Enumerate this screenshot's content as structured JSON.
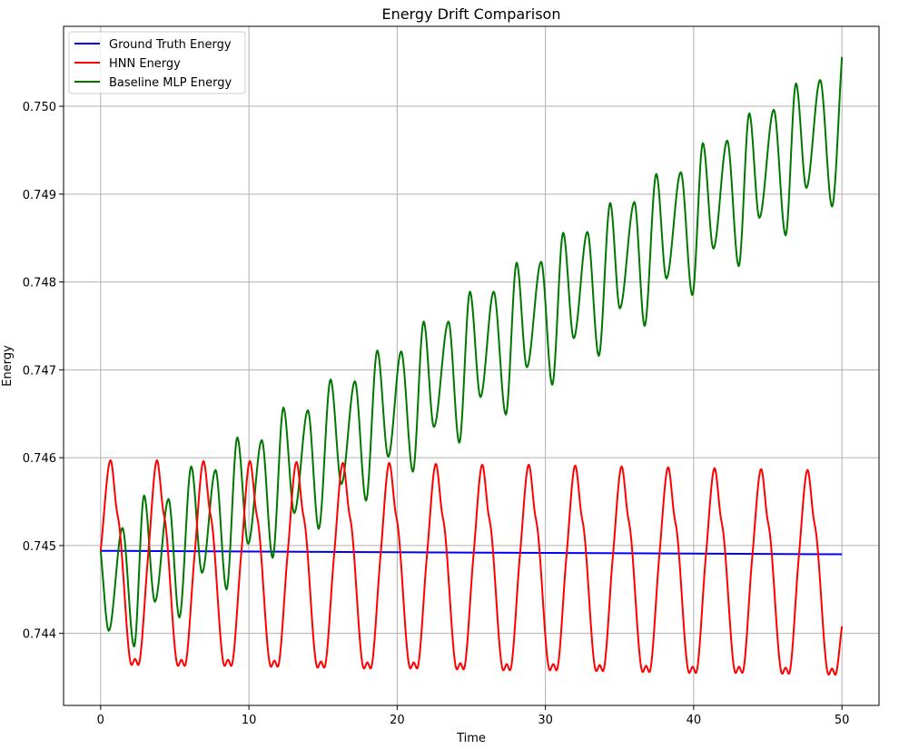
{
  "chart_data": {
    "type": "line",
    "title": "Energy Drift Comparison",
    "xlabel": "Time",
    "ylabel": "Energy",
    "xlim": [
      -2.5,
      52.5
    ],
    "ylim": [
      0.74318,
      0.75091
    ],
    "xticks": [
      0,
      10,
      20,
      30,
      40,
      50
    ],
    "xtick_labels": [
      "0",
      "10",
      "20",
      "30",
      "40",
      "50"
    ],
    "yticks": [
      0.744,
      0.745,
      0.746,
      0.747,
      0.748,
      0.749,
      0.75
    ],
    "ytick_labels": [
      "0.744",
      "0.745",
      "0.746",
      "0.747",
      "0.748",
      "0.749",
      "0.750"
    ],
    "grid": true,
    "legend": "top-left",
    "series": [
      {
        "name": "Ground Truth Energy",
        "color": "#0000ff",
        "points": [
          [
            0,
            0.74494
          ],
          [
            50,
            0.7449
          ]
        ]
      },
      {
        "name": "HNN Energy",
        "color": "#ff0000",
        "points": [
          [
            0,
            0.74494
          ],
          [
            0.67,
            0.74597
          ],
          [
            1.07,
            0.74542
          ],
          [
            1.27,
            0.74521
          ],
          [
            2.09,
            0.74364
          ],
          [
            2.32,
            0.74371
          ],
          [
            2.54,
            0.74364
          ],
          [
            3.21,
            0.7449
          ],
          [
            3.8,
            0.74597
          ],
          [
            4.2,
            0.74542
          ],
          [
            4.4,
            0.74521
          ],
          [
            5.22,
            0.74363
          ],
          [
            5.45,
            0.7437
          ],
          [
            5.67,
            0.74363
          ],
          [
            6.34,
            0.7449
          ],
          [
            6.94,
            0.74596
          ],
          [
            7.34,
            0.74542
          ],
          [
            7.54,
            0.74521
          ],
          [
            8.36,
            0.74363
          ],
          [
            8.59,
            0.7437
          ],
          [
            8.81,
            0.74363
          ],
          [
            9.48,
            0.7449
          ],
          [
            10.07,
            0.74596
          ],
          [
            10.47,
            0.74541
          ],
          [
            10.67,
            0.7452
          ],
          [
            11.49,
            0.74362
          ],
          [
            11.72,
            0.74369
          ],
          [
            11.94,
            0.74362
          ],
          [
            12.61,
            0.7449
          ],
          [
            13.21,
            0.74595
          ],
          [
            13.61,
            0.74541
          ],
          [
            13.81,
            0.7452
          ],
          [
            14.63,
            0.74361
          ],
          [
            14.86,
            0.74368
          ],
          [
            15.08,
            0.74361
          ],
          [
            15.75,
            0.7449
          ],
          [
            16.34,
            0.74594
          ],
          [
            16.74,
            0.7454
          ],
          [
            16.94,
            0.74519
          ],
          [
            17.76,
            0.7436
          ],
          [
            17.99,
            0.74367
          ],
          [
            18.21,
            0.7436
          ],
          [
            18.88,
            0.74489
          ],
          [
            19.47,
            0.74594
          ],
          [
            19.87,
            0.7454
          ],
          [
            20.07,
            0.74519
          ],
          [
            20.89,
            0.7436
          ],
          [
            21.12,
            0.74367
          ],
          [
            21.34,
            0.7436
          ],
          [
            22.01,
            0.74489
          ],
          [
            22.61,
            0.74593
          ],
          [
            23.01,
            0.74539
          ],
          [
            23.21,
            0.74518
          ],
          [
            24.03,
            0.74359
          ],
          [
            24.26,
            0.74366
          ],
          [
            24.48,
            0.74359
          ],
          [
            25.15,
            0.74489
          ],
          [
            25.74,
            0.74592
          ],
          [
            26.14,
            0.74538
          ],
          [
            26.34,
            0.74517
          ],
          [
            27.16,
            0.74358
          ],
          [
            27.39,
            0.74365
          ],
          [
            27.61,
            0.74358
          ],
          [
            28.28,
            0.74489
          ],
          [
            28.88,
            0.74592
          ],
          [
            29.28,
            0.74538
          ],
          [
            29.48,
            0.74517
          ],
          [
            30.3,
            0.74358
          ],
          [
            30.53,
            0.74365
          ],
          [
            30.75,
            0.74358
          ],
          [
            31.42,
            0.74488
          ],
          [
            32.01,
            0.74591
          ],
          [
            32.41,
            0.74537
          ],
          [
            32.61,
            0.74516
          ],
          [
            33.43,
            0.74357
          ],
          [
            33.66,
            0.74364
          ],
          [
            33.88,
            0.74357
          ],
          [
            34.55,
            0.74488
          ],
          [
            35.14,
            0.7459
          ],
          [
            35.54,
            0.74536
          ],
          [
            35.74,
            0.74515
          ],
          [
            36.56,
            0.74356
          ],
          [
            36.79,
            0.74363
          ],
          [
            37.01,
            0.74356
          ],
          [
            37.68,
            0.74488
          ],
          [
            38.28,
            0.74589
          ],
          [
            38.68,
            0.74535
          ],
          [
            38.88,
            0.74514
          ],
          [
            39.7,
            0.74355
          ],
          [
            39.93,
            0.74362
          ],
          [
            40.15,
            0.74355
          ],
          [
            40.82,
            0.74488
          ],
          [
            41.41,
            0.74588
          ],
          [
            41.81,
            0.74534
          ],
          [
            42.01,
            0.74513
          ],
          [
            42.83,
            0.74355
          ],
          [
            43.06,
            0.74362
          ],
          [
            43.28,
            0.74355
          ],
          [
            43.95,
            0.74487
          ],
          [
            44.55,
            0.74587
          ],
          [
            44.95,
            0.74533
          ],
          [
            45.15,
            0.74512
          ],
          [
            45.97,
            0.74354
          ],
          [
            46.2,
            0.74361
          ],
          [
            46.42,
            0.74354
          ],
          [
            47.09,
            0.74487
          ],
          [
            47.68,
            0.74586
          ],
          [
            48.08,
            0.74532
          ],
          [
            48.28,
            0.74511
          ],
          [
            49.1,
            0.74353
          ],
          [
            49.33,
            0.7436
          ],
          [
            49.55,
            0.74353
          ],
          [
            50,
            0.74408
          ]
        ]
      },
      {
        "name": "Baseline MLP Energy",
        "color": "#007800",
        "points": [
          [
            0,
            0.74494
          ],
          [
            0.55,
            0.74403
          ],
          [
            1.47,
            0.7452
          ],
          [
            2.26,
            0.74385
          ],
          [
            2.93,
            0.74557
          ],
          [
            3.66,
            0.74436
          ],
          [
            4.58,
            0.74553
          ],
          [
            5.31,
            0.74418
          ],
          [
            6.11,
            0.7459
          ],
          [
            6.84,
            0.74469
          ],
          [
            7.75,
            0.74586
          ],
          [
            8.49,
            0.7445
          ],
          [
            9.22,
            0.74623
          ],
          [
            9.95,
            0.74502
          ],
          [
            10.87,
            0.7462
          ],
          [
            11.6,
            0.74486
          ],
          [
            12.33,
            0.74657
          ],
          [
            13.06,
            0.74537
          ],
          [
            13.98,
            0.74654
          ],
          [
            14.71,
            0.74519
          ],
          [
            15.51,
            0.74689
          ],
          [
            16.24,
            0.7457
          ],
          [
            17.15,
            0.74687
          ],
          [
            17.9,
            0.74551
          ],
          [
            18.66,
            0.74722
          ],
          [
            19.4,
            0.74601
          ],
          [
            20.27,
            0.74721
          ],
          [
            21.06,
            0.74584
          ],
          [
            21.79,
            0.74755
          ],
          [
            22.48,
            0.74635
          ],
          [
            23.46,
            0.74755
          ],
          [
            24.19,
            0.74617
          ],
          [
            24.91,
            0.74789
          ],
          [
            25.62,
            0.74669
          ],
          [
            26.51,
            0.74789
          ],
          [
            27.33,
            0.74649
          ],
          [
            28.06,
            0.74822
          ],
          [
            28.75,
            0.74703
          ],
          [
            29.71,
            0.74823
          ],
          [
            30.46,
            0.74683
          ],
          [
            31.2,
            0.74856
          ],
          [
            31.91,
            0.74736
          ],
          [
            32.83,
            0.74857
          ],
          [
            33.6,
            0.74716
          ],
          [
            34.37,
            0.7489
          ],
          [
            35.02,
            0.7477
          ],
          [
            36.0,
            0.74891
          ],
          [
            36.69,
            0.7475
          ],
          [
            37.48,
            0.74923
          ],
          [
            38.16,
            0.74804
          ],
          [
            39.13,
            0.74925
          ],
          [
            39.91,
            0.74785
          ],
          [
            40.62,
            0.74958
          ],
          [
            41.33,
            0.74838
          ],
          [
            42.26,
            0.74961
          ],
          [
            43.04,
            0.74818
          ],
          [
            43.75,
            0.74992
          ],
          [
            44.43,
            0.74873
          ],
          [
            45.4,
            0.74996
          ],
          [
            46.2,
            0.74853
          ],
          [
            46.9,
            0.75026
          ],
          [
            47.6,
            0.74907
          ],
          [
            48.53,
            0.7503
          ],
          [
            49.33,
            0.74886
          ],
          [
            50,
            0.75056
          ]
        ]
      }
    ]
  }
}
